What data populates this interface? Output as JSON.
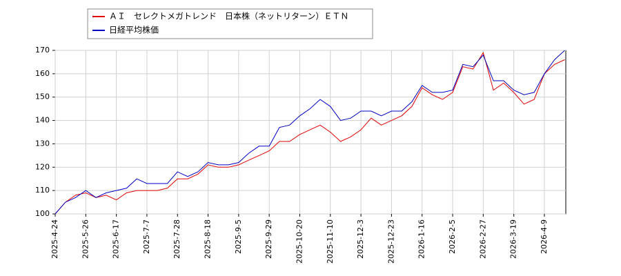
{
  "chart_data": {
    "type": "line",
    "categories": [
      "2025-4-24",
      null,
      null,
      "2025-5-26",
      null,
      null,
      "2025-6-17",
      null,
      null,
      "2025-7-7",
      null,
      null,
      "2025-7-28",
      null,
      null,
      "2025-8-18",
      null,
      null,
      "2025-9-5",
      null,
      null,
      "2025-9-29",
      null,
      null,
      "2025-10-20",
      null,
      null,
      "2025-11-10",
      null,
      null,
      "2025-12-3",
      null,
      null,
      "2025-12-23",
      null,
      null,
      "2026-1-16",
      null,
      null,
      "2026-2-5",
      null,
      null,
      "2026-2-27",
      null,
      null,
      "2026-3-19",
      null,
      null,
      "2026-4-9",
      null,
      null
    ],
    "series": [
      {
        "name": "ＡＩ　セレクトメガトレンド　日本株（ネットリターン）ＥＴＮ",
        "color": "#e00000",
        "values": [
          100,
          105,
          108,
          109,
          107,
          108,
          106,
          109,
          110,
          110,
          110,
          111,
          115,
          115,
          117,
          121,
          120,
          120,
          121,
          123,
          125,
          127,
          131,
          131,
          134,
          136,
          138,
          135,
          131,
          133,
          136,
          141,
          138,
          140,
          142,
          146,
          154,
          151,
          149,
          152,
          163,
          162,
          169,
          153,
          156,
          152,
          147,
          149,
          160,
          164,
          166
        ]
      },
      {
        "name": "日経平均株価",
        "color": "#0000c0",
        "values": [
          100,
          105,
          107,
          110,
          107,
          109,
          110,
          111,
          115,
          113,
          113,
          113,
          118,
          116,
          118,
          122,
          121,
          121,
          122,
          126,
          129,
          129,
          137,
          138,
          142,
          145,
          149,
          146,
          140,
          141,
          144,
          144,
          142,
          144,
          144,
          148,
          155,
          152,
          152,
          153,
          164,
          163,
          168,
          157,
          157,
          153,
          151,
          152,
          160,
          166,
          170
        ]
      }
    ],
    "ylim": [
      100,
      170
    ],
    "yticks": [
      100,
      110,
      120,
      130,
      140,
      150,
      160,
      170
    ],
    "grid": true
  }
}
